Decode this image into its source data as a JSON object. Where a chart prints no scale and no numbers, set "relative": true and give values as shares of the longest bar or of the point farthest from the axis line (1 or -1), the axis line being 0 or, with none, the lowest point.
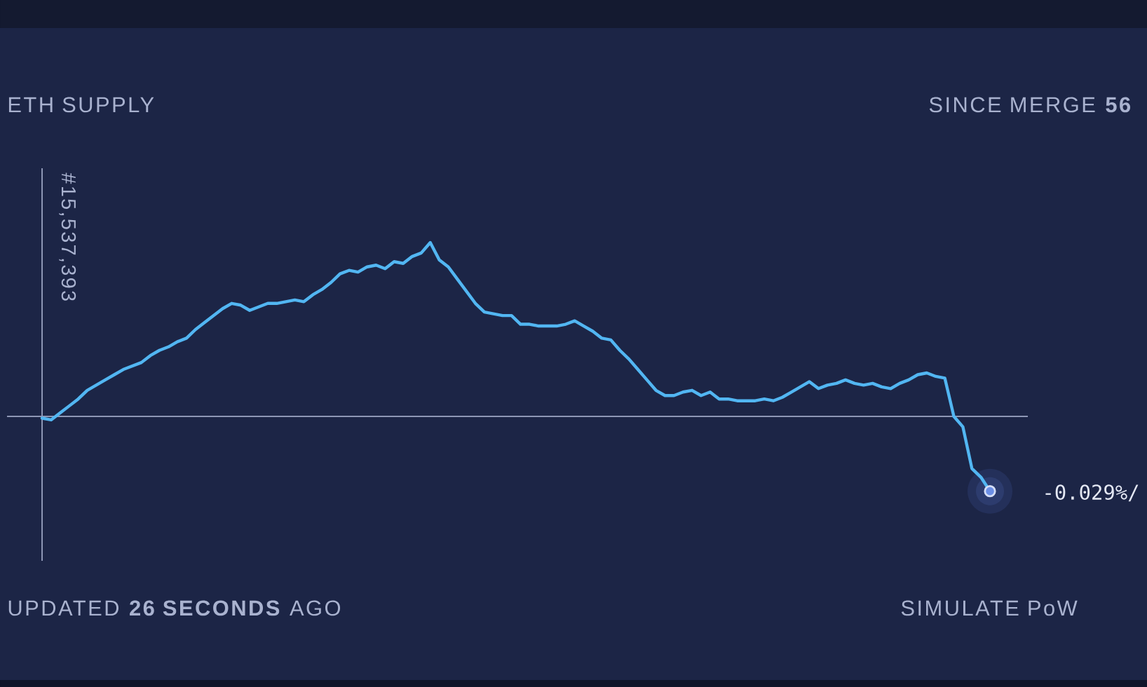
{
  "chart_data": {
    "type": "line",
    "title": "ETH SUPPLY",
    "relative": true,
    "color": "#52b6f2",
    "categories": [
      null,
      null,
      null,
      null,
      null,
      null,
      null,
      null,
      null,
      null,
      null,
      null,
      null,
      null,
      null,
      null,
      null,
      null,
      null,
      null,
      null,
      null,
      null,
      null,
      null,
      null,
      null,
      null,
      null,
      null,
      null,
      null,
      null,
      null,
      null,
      null,
      null,
      null,
      null,
      null,
      null,
      null,
      null,
      null,
      null,
      null,
      null,
      null,
      null,
      null,
      null,
      null,
      null,
      null,
      null,
      null,
      null,
      null,
      null,
      null,
      null,
      null,
      null,
      null,
      null,
      null,
      null,
      null,
      null,
      null,
      null,
      null,
      null,
      null,
      null,
      null,
      null,
      null,
      null,
      null,
      null,
      null,
      null,
      null,
      null,
      null,
      null,
      null,
      null,
      null,
      null,
      null,
      null,
      null,
      null,
      null,
      null,
      null,
      null,
      null,
      null,
      null,
      null,
      null,
      null,
      null
    ],
    "values": [
      -0.01,
      -0.02,
      0.02,
      0.06,
      0.1,
      0.15,
      0.18,
      0.21,
      0.24,
      0.27,
      0.29,
      0.31,
      0.35,
      0.38,
      0.4,
      0.43,
      0.45,
      0.5,
      0.54,
      0.58,
      0.62,
      0.65,
      0.64,
      0.61,
      0.63,
      0.65,
      0.65,
      0.66,
      0.67,
      0.66,
      0.7,
      0.73,
      0.77,
      0.82,
      0.84,
      0.83,
      0.86,
      0.87,
      0.85,
      0.89,
      0.88,
      0.92,
      0.94,
      1.0,
      0.9,
      0.86,
      0.79,
      0.72,
      0.65,
      0.6,
      0.59,
      0.58,
      0.58,
      0.53,
      0.53,
      0.52,
      0.52,
      0.52,
      0.53,
      0.55,
      0.52,
      0.49,
      0.45,
      0.44,
      0.38,
      0.33,
      0.27,
      0.21,
      0.15,
      0.12,
      0.12,
      0.14,
      0.15,
      0.12,
      0.14,
      0.1,
      0.1,
      0.09,
      0.09,
      0.09,
      0.1,
      0.09,
      0.11,
      0.14,
      0.17,
      0.2,
      0.16,
      0.18,
      0.19,
      0.21,
      0.19,
      0.18,
      0.19,
      0.17,
      0.16,
      0.19,
      0.21,
      0.24,
      0.25,
      0.23,
      0.22,
      0.0,
      -0.06,
      -0.3,
      -0.35,
      -0.43
    ],
    "annotations": [
      "#15,537,393",
      "SINCE MERGE **56**",
      "-0.029%/",
      "UPDATED **26 SECONDS** AGO",
      "SIMULATE PoW"
    ]
  }
}
